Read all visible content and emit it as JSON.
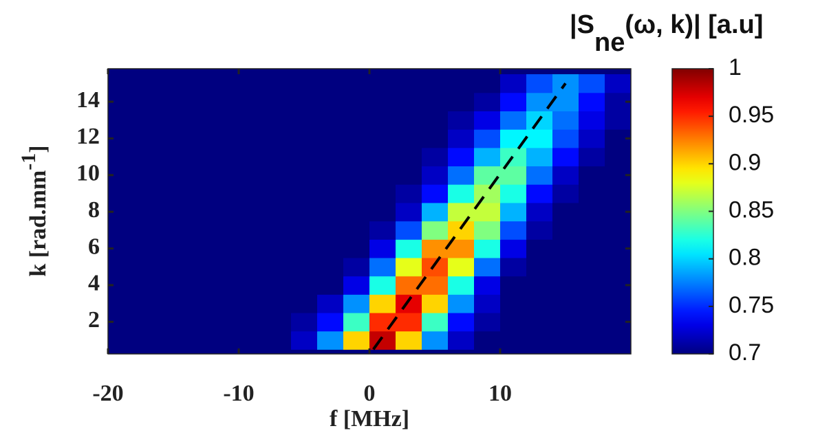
{
  "chart_data": {
    "type": "heatmap",
    "x_label": "f [MHz]",
    "y_label": [
      "k [rad.mm",
      "-1",
      "]"
    ],
    "colorbar_label": [
      "|S",
      "ne",
      "(ω, k)| [a.u]"
    ],
    "x": [
      -19,
      -17,
      -15,
      -13,
      -11,
      -9,
      -7,
      -5,
      -3,
      -1,
      1,
      3,
      5,
      7,
      9,
      11,
      13,
      15,
      17,
      19
    ],
    "y": [
      1,
      2,
      3,
      4,
      5,
      6,
      7,
      8,
      9,
      10,
      11,
      12,
      13,
      14,
      15
    ],
    "z": [
      [
        0.7,
        0.7,
        0.7,
        0.7,
        0.7,
        0.7,
        0.7,
        0.72,
        0.78,
        0.9,
        0.98,
        0.9,
        0.78,
        0.72,
        0.7,
        0.7,
        0.7,
        0.7,
        0.7,
        0.7
      ],
      [
        0.7,
        0.7,
        0.7,
        0.7,
        0.7,
        0.7,
        0.7,
        0.71,
        0.74,
        0.83,
        0.95,
        0.95,
        0.83,
        0.74,
        0.71,
        0.7,
        0.7,
        0.7,
        0.7,
        0.7
      ],
      [
        0.7,
        0.7,
        0.7,
        0.7,
        0.7,
        0.7,
        0.7,
        0.7,
        0.72,
        0.78,
        0.9,
        0.97,
        0.9,
        0.78,
        0.72,
        0.7,
        0.7,
        0.7,
        0.7,
        0.7
      ],
      [
        0.7,
        0.7,
        0.7,
        0.7,
        0.7,
        0.7,
        0.7,
        0.7,
        0.7,
        0.73,
        0.82,
        0.93,
        0.93,
        0.82,
        0.73,
        0.7,
        0.7,
        0.7,
        0.7,
        0.7
      ],
      [
        0.7,
        0.7,
        0.7,
        0.7,
        0.7,
        0.7,
        0.7,
        0.7,
        0.7,
        0.71,
        0.77,
        0.88,
        0.94,
        0.88,
        0.77,
        0.71,
        0.7,
        0.7,
        0.7,
        0.7
      ],
      [
        0.7,
        0.7,
        0.7,
        0.7,
        0.7,
        0.7,
        0.7,
        0.7,
        0.7,
        0.7,
        0.73,
        0.82,
        0.92,
        0.92,
        0.82,
        0.73,
        0.7,
        0.7,
        0.7,
        0.7
      ],
      [
        0.7,
        0.7,
        0.7,
        0.7,
        0.7,
        0.7,
        0.7,
        0.7,
        0.7,
        0.7,
        0.71,
        0.76,
        0.85,
        0.9,
        0.85,
        0.76,
        0.71,
        0.7,
        0.7,
        0.7
      ],
      [
        0.7,
        0.7,
        0.7,
        0.7,
        0.7,
        0.7,
        0.7,
        0.7,
        0.7,
        0.7,
        0.7,
        0.72,
        0.79,
        0.87,
        0.87,
        0.79,
        0.72,
        0.7,
        0.7,
        0.7
      ],
      [
        0.7,
        0.7,
        0.7,
        0.7,
        0.7,
        0.7,
        0.7,
        0.7,
        0.7,
        0.7,
        0.7,
        0.71,
        0.74,
        0.82,
        0.86,
        0.82,
        0.74,
        0.71,
        0.7,
        0.7
      ],
      [
        0.7,
        0.7,
        0.7,
        0.7,
        0.7,
        0.7,
        0.7,
        0.7,
        0.7,
        0.7,
        0.7,
        0.7,
        0.72,
        0.77,
        0.84,
        0.84,
        0.77,
        0.72,
        0.7,
        0.7
      ],
      [
        0.7,
        0.7,
        0.7,
        0.7,
        0.7,
        0.7,
        0.7,
        0.7,
        0.7,
        0.7,
        0.7,
        0.7,
        0.71,
        0.74,
        0.79,
        0.83,
        0.79,
        0.74,
        0.71,
        0.7
      ],
      [
        0.7,
        0.7,
        0.7,
        0.7,
        0.7,
        0.7,
        0.7,
        0.7,
        0.7,
        0.7,
        0.7,
        0.7,
        0.7,
        0.72,
        0.76,
        0.81,
        0.81,
        0.76,
        0.72,
        0.7
      ],
      [
        0.7,
        0.7,
        0.7,
        0.7,
        0.7,
        0.7,
        0.7,
        0.7,
        0.7,
        0.7,
        0.7,
        0.7,
        0.7,
        0.71,
        0.73,
        0.77,
        0.8,
        0.77,
        0.73,
        0.71
      ],
      [
        0.7,
        0.7,
        0.7,
        0.7,
        0.7,
        0.7,
        0.7,
        0.7,
        0.7,
        0.7,
        0.7,
        0.7,
        0.7,
        0.7,
        0.71,
        0.74,
        0.78,
        0.78,
        0.74,
        0.71
      ],
      [
        0.7,
        0.7,
        0.7,
        0.7,
        0.7,
        0.7,
        0.7,
        0.7,
        0.7,
        0.7,
        0.7,
        0.7,
        0.7,
        0.7,
        0.7,
        0.72,
        0.76,
        0.78,
        0.76,
        0.72
      ]
    ],
    "cell_width": 2,
    "cell_height": 1,
    "xlim": [
      -20,
      20
    ],
    "ylim": [
      0.25,
      15.8
    ],
    "xticks": [
      -20,
      -10,
      0,
      10
    ],
    "yticks": [
      2,
      4,
      6,
      8,
      10,
      12,
      14
    ],
    "colormap": "jet",
    "clim": [
      0.7,
      1
    ],
    "cticks": [
      0.7,
      0.75,
      0.8,
      0.85,
      0.9,
      0.95,
      1
    ],
    "lines": [
      {
        "x": [
          0.3,
          15
        ],
        "y": [
          0.5,
          15
        ],
        "style": "dashed",
        "color": "#000000"
      }
    ]
  }
}
